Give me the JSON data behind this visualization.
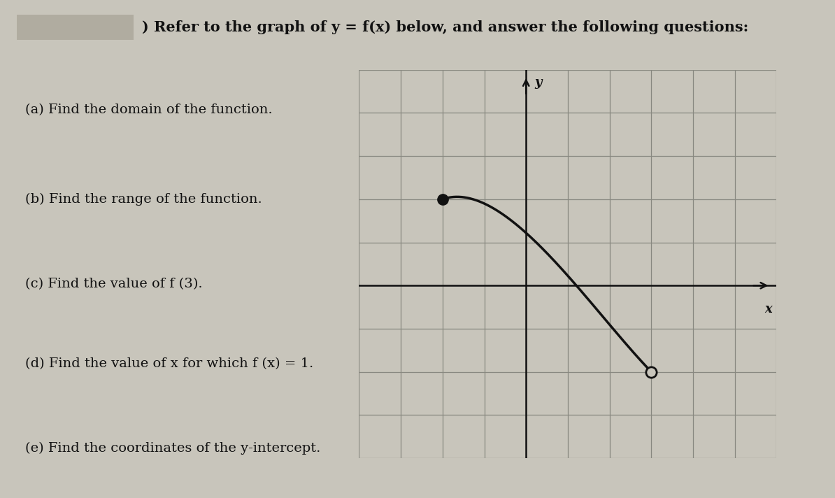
{
  "title": ") Refer to the graph of y = f(x) below, and answer the following questions:",
  "questions": [
    "(a) Find the domain of the function.",
    "(b) Find the range of the function.",
    "(c) Find the value of f (3).",
    "(d) Find the value of x for which f (x) = 1.",
    "(e) Find the coordinates of the y-intercept."
  ],
  "background_color": "#c8c5bb",
  "graph_bg_color": "#c8c5bb",
  "grid_color": "#888880",
  "curve_color": "#111111",
  "axis_color": "#111111",
  "closed_point": [
    -2,
    2
  ],
  "open_point": [
    3,
    -2
  ],
  "bezier_p1": [
    -0.5,
    2.5
  ],
  "bezier_p2": [
    1.5,
    -0.5
  ],
  "xlim": [
    -4,
    6
  ],
  "ylim": [
    -4,
    5
  ],
  "xlabel": "x",
  "ylabel": "y",
  "title_fontsize": 15,
  "question_fontsize": 14,
  "title_bar_color": "#e8e0d0",
  "redact_color": "#b0aca0"
}
